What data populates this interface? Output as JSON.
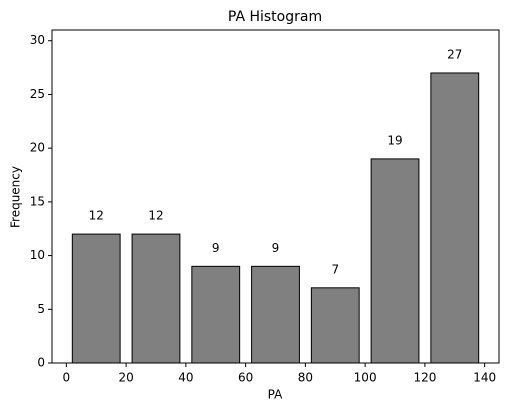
{
  "chart_data": {
    "type": "histogram",
    "title": "PA Histogram",
    "x_label": "PA",
    "y_label": "Frequency",
    "bins": [
      0,
      20,
      40,
      60,
      80,
      100,
      120,
      140
    ],
    "values": [
      12,
      12,
      9,
      9,
      7,
      19,
      27
    ],
    "color": "#808080",
    "xlim": [
      -4.8,
      144.8
    ],
    "ylim": [
      0,
      31
    ],
    "xticks": [
      0,
      20,
      40,
      60,
      80,
      100,
      120,
      140
    ],
    "yticks": [
      0,
      5,
      10,
      15,
      20,
      25,
      30
    ],
    "grid": false
  }
}
